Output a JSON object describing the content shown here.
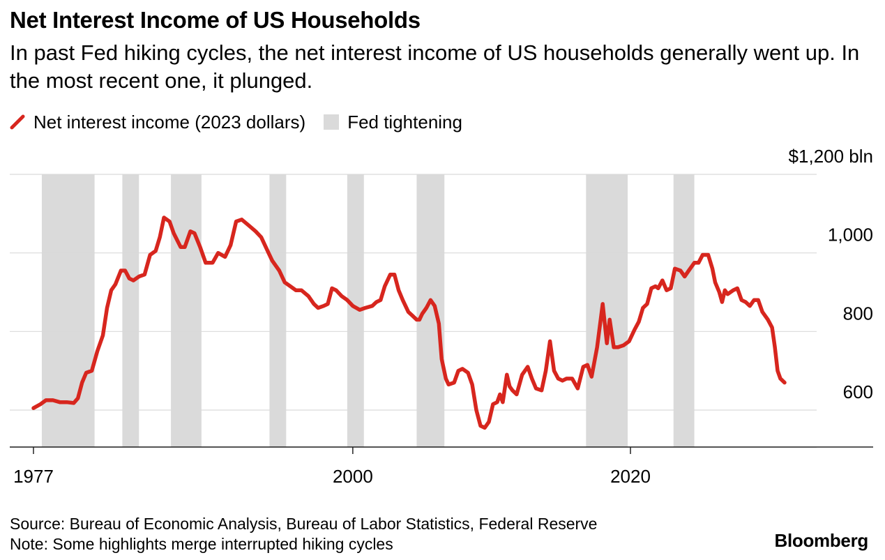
{
  "header": {
    "title": "Net Interest Income of US Households",
    "subtitle": "In past Fed hiking cycles, the net interest income of US households generally went up. In the most recent one, it plunged."
  },
  "legend": {
    "line_label": "Net interest income (2023 dollars)",
    "band_label": "Fed tightening"
  },
  "colors": {
    "line": "#d7261e",
    "band": "#dadada",
    "grid": "#d9d9d9",
    "axis": "#222222"
  },
  "chart_data": {
    "type": "line",
    "title": "Net Interest Income of US Households",
    "series": [
      {
        "name": "Net interest income (2023 dollars)",
        "points": [
          [
            1977.0,
            605
          ],
          [
            1977.5,
            615
          ],
          [
            1977.9,
            625
          ],
          [
            1978.4,
            625
          ],
          [
            1978.9,
            620
          ],
          [
            1979.4,
            620
          ],
          [
            1979.9,
            618
          ],
          [
            1980.2,
            630
          ],
          [
            1980.5,
            670
          ],
          [
            1980.8,
            695
          ],
          [
            1981.2,
            700
          ],
          [
            1981.6,
            750
          ],
          [
            1982.0,
            790
          ],
          [
            1982.3,
            860
          ],
          [
            1982.6,
            905
          ],
          [
            1982.9,
            920
          ],
          [
            1983.3,
            955
          ],
          [
            1983.6,
            955
          ],
          [
            1983.9,
            935
          ],
          [
            1984.2,
            930
          ],
          [
            1984.6,
            940
          ],
          [
            1985.0,
            945
          ],
          [
            1985.4,
            995
          ],
          [
            1985.8,
            1005
          ],
          [
            1986.1,
            1040
          ],
          [
            1986.4,
            1090
          ],
          [
            1986.8,
            1080
          ],
          [
            1987.1,
            1050
          ],
          [
            1987.6,
            1015
          ],
          [
            1987.9,
            1015
          ],
          [
            1988.3,
            1055
          ],
          [
            1988.6,
            1050
          ],
          [
            1989.0,
            1015
          ],
          [
            1989.4,
            975
          ],
          [
            1989.9,
            975
          ],
          [
            1990.3,
            1000
          ],
          [
            1990.8,
            990
          ],
          [
            1991.2,
            1020
          ],
          [
            1991.6,
            1080
          ],
          [
            1992.0,
            1085
          ],
          [
            1992.5,
            1070
          ],
          [
            1993.0,
            1055
          ],
          [
            1993.4,
            1040
          ],
          [
            1993.8,
            1010
          ],
          [
            1994.2,
            980
          ],
          [
            1994.7,
            955
          ],
          [
            1995.1,
            925
          ],
          [
            1995.5,
            915
          ],
          [
            1995.9,
            905
          ],
          [
            1996.3,
            905
          ],
          [
            1996.8,
            890
          ],
          [
            1997.2,
            870
          ],
          [
            1997.5,
            860
          ],
          [
            1997.9,
            865
          ],
          [
            1998.2,
            870
          ],
          [
            1998.5,
            910
          ],
          [
            1998.8,
            905
          ],
          [
            1999.2,
            890
          ],
          [
            1999.6,
            880
          ],
          [
            2000.0,
            865
          ],
          [
            2000.5,
            855
          ],
          [
            2000.9,
            860
          ],
          [
            2001.4,
            865
          ],
          [
            2001.7,
            875
          ],
          [
            2002.0,
            880
          ],
          [
            2002.3,
            915
          ],
          [
            2002.7,
            945
          ],
          [
            2003.0,
            945
          ],
          [
            2003.3,
            905
          ],
          [
            2003.6,
            880
          ],
          [
            2004.0,
            850
          ],
          [
            2004.3,
            840
          ],
          [
            2004.6,
            830
          ],
          [
            2004.8,
            830
          ],
          [
            2005.0,
            845
          ],
          [
            2005.3,
            860
          ],
          [
            2005.6,
            880
          ],
          [
            2005.9,
            865
          ],
          [
            2006.2,
            820
          ],
          [
            2006.4,
            730
          ],
          [
            2006.7,
            680
          ],
          [
            2006.9,
            665
          ],
          [
            2007.3,
            670
          ],
          [
            2007.6,
            700
          ],
          [
            2007.9,
            705
          ],
          [
            2008.3,
            695
          ],
          [
            2008.6,
            665
          ],
          [
            2008.9,
            600
          ],
          [
            2009.2,
            560
          ],
          [
            2009.5,
            555
          ],
          [
            2009.8,
            570
          ],
          [
            2010.1,
            615
          ],
          [
            2010.4,
            620
          ],
          [
            2010.6,
            640
          ],
          [
            2010.8,
            620
          ],
          [
            2011.1,
            690
          ],
          [
            2011.3,
            660
          ],
          [
            2011.5,
            650
          ],
          [
            2011.8,
            640
          ],
          [
            2012.2,
            690
          ],
          [
            2012.6,
            710
          ],
          [
            2012.9,
            680
          ],
          [
            2013.2,
            655
          ],
          [
            2013.6,
            650
          ],
          [
            2013.9,
            700
          ],
          [
            2014.2,
            775
          ],
          [
            2014.5,
            700
          ],
          [
            2014.8,
            680
          ],
          [
            2015.1,
            675
          ],
          [
            2015.4,
            680
          ],
          [
            2015.8,
            680
          ],
          [
            2016.2,
            655
          ],
          [
            2016.6,
            710
          ],
          [
            2016.9,
            715
          ],
          [
            2017.2,
            685
          ],
          [
            2017.6,
            760
          ],
          [
            2018.0,
            870
          ],
          [
            2018.3,
            770
          ],
          [
            2018.5,
            830
          ],
          [
            2018.8,
            760
          ],
          [
            2019.1,
            760
          ],
          [
            2019.5,
            765
          ],
          [
            2019.9,
            775
          ],
          [
            2020.3,
            805
          ],
          [
            2020.6,
            825
          ],
          [
            2020.9,
            860
          ],
          [
            2021.2,
            870
          ],
          [
            2021.5,
            910
          ],
          [
            2021.8,
            915
          ],
          [
            2022.0,
            910
          ],
          [
            2022.3,
            930
          ],
          [
            2022.6,
            905
          ],
          [
            2022.9,
            910
          ],
          [
            2023.2,
            960
          ],
          [
            2023.6,
            955
          ],
          [
            2023.9,
            940
          ],
          [
            2024.2,
            955
          ],
          [
            2024.6,
            975
          ],
          [
            2024.9,
            975
          ],
          [
            2025.2,
            995
          ],
          [
            2025.6,
            995
          ],
          [
            2025.9,
            960
          ],
          [
            2026.1,
            925
          ],
          [
            2026.4,
            900
          ],
          [
            2026.6,
            875
          ],
          [
            2026.8,
            905
          ],
          [
            2027.0,
            895
          ],
          [
            2027.4,
            905
          ],
          [
            2027.7,
            910
          ],
          [
            2028.0,
            880
          ],
          [
            2028.3,
            875
          ],
          [
            2028.6,
            865
          ],
          [
            2028.9,
            880
          ],
          [
            2029.2,
            880
          ],
          [
            2029.5,
            850
          ],
          [
            2029.9,
            830
          ],
          [
            2030.2,
            810
          ],
          [
            2030.4,
            760
          ],
          [
            2030.6,
            700
          ],
          [
            2030.8,
            680
          ],
          [
            2031.1,
            670
          ]
        ]
      }
    ],
    "shaded_periods": [
      [
        1977.6,
        1981.4
      ],
      [
        1983.4,
        1984.6
      ],
      [
        1986.9,
        1989.1
      ],
      [
        1994.0,
        1995.2
      ],
      [
        1999.6,
        2000.8
      ],
      [
        2004.6,
        2006.6
      ],
      [
        2016.8,
        2019.8
      ],
      [
        2023.1,
        2024.6
      ]
    ],
    "x_ticks": [
      {
        "value": 1977,
        "label": "1977"
      },
      {
        "value": 2000,
        "label": "2000"
      },
      {
        "value": 2020,
        "label": "2020"
      }
    ],
    "y_ticks": [
      {
        "value": 1200,
        "label": "$1,200 bln"
      },
      {
        "value": 1000,
        "label": "1,000"
      },
      {
        "value": 800,
        "label": "800"
      },
      {
        "value": 600,
        "label": "600"
      }
    ],
    "xlim": [
      1977,
      2031
    ],
    "ylim": [
      600,
      1200
    ],
    "grid": true
  },
  "footer": {
    "source": "Source: Bureau of Economic Analysis, Bureau of Labor Statistics, Federal Reserve",
    "note": "Note: Some highlights merge interrupted hiking cycles"
  },
  "brand": "Bloomberg"
}
